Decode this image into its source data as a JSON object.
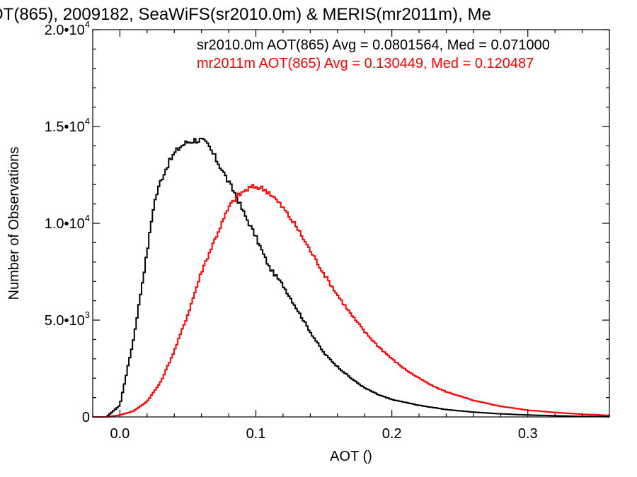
{
  "chart_data": {
    "type": "histogram",
    "title": "OT(865), 2009182, SeaWiFS(sr2010.0m) & MERIS(mr2011m), Me",
    "xlabel": "AOT ()",
    "ylabel": "Number of Observations",
    "xlim": [
      -0.02,
      0.36
    ],
    "ylim": [
      0,
      20000
    ],
    "x_ticks": [
      {
        "value": 0.0,
        "label": "0.0"
      },
      {
        "value": 0.1,
        "label": "0.1"
      },
      {
        "value": 0.2,
        "label": "0.2"
      },
      {
        "value": 0.3,
        "label": "0.3"
      }
    ],
    "y_ticks": [
      {
        "value": 0,
        "mantissa": "0",
        "exp": ""
      },
      {
        "value": 5000,
        "mantissa": "5.0•10",
        "exp": "3"
      },
      {
        "value": 10000,
        "mantissa": "1.0•10",
        "exp": "4"
      },
      {
        "value": 15000,
        "mantissa": "1.5•10",
        "exp": "4"
      },
      {
        "value": 20000,
        "mantissa": "2.0•10",
        "exp": "4"
      }
    ],
    "grid": false,
    "legend": [
      {
        "text": "sr2010.0m AOT(865) Avg = 0.0801564, Med = 0.071000",
        "color": "#000000"
      },
      {
        "text": "mr2011m AOT(865) Avg = 0.130449, Med = 0.120487",
        "color": "#ff0000"
      }
    ],
    "series": [
      {
        "color": "#000000",
        "x": [
          -0.01,
          0.0,
          0.01,
          0.02,
          0.025,
          0.03,
          0.035,
          0.04,
          0.045,
          0.05,
          0.055,
          0.06,
          0.065,
          0.07,
          0.075,
          0.08,
          0.085,
          0.09,
          0.095,
          0.1,
          0.105,
          0.11,
          0.12,
          0.13,
          0.14,
          0.15,
          0.16,
          0.17,
          0.18,
          0.19,
          0.2,
          0.22,
          0.24,
          0.26,
          0.28,
          0.3,
          0.32,
          0.34,
          0.36
        ],
        "values": [
          0,
          600,
          4000,
          8500,
          11000,
          12200,
          13000,
          13600,
          14000,
          14200,
          14300,
          14300,
          14000,
          13400,
          12800,
          12100,
          11500,
          10700,
          10000,
          9300,
          8500,
          7700,
          6800,
          5600,
          4400,
          3300,
          2600,
          2000,
          1500,
          1150,
          900,
          600,
          380,
          250,
          160,
          100,
          60,
          30,
          15
        ]
      },
      {
        "color": "#ff0000",
        "x": [
          -0.01,
          0.0,
          0.01,
          0.02,
          0.03,
          0.04,
          0.05,
          0.06,
          0.07,
          0.075,
          0.08,
          0.085,
          0.09,
          0.095,
          0.1,
          0.105,
          0.11,
          0.115,
          0.12,
          0.125,
          0.13,
          0.135,
          0.14,
          0.145,
          0.15,
          0.16,
          0.17,
          0.18,
          0.19,
          0.2,
          0.21,
          0.22,
          0.23,
          0.24,
          0.26,
          0.28,
          0.3,
          0.32,
          0.34,
          0.36
        ],
        "values": [
          0,
          100,
          300,
          800,
          1800,
          3400,
          5300,
          7500,
          9200,
          10000,
          10800,
          11300,
          11600,
          11800,
          11900,
          11800,
          11600,
          11200,
          10800,
          10300,
          9800,
          9200,
          8600,
          8000,
          7400,
          6300,
          5300,
          4400,
          3650,
          3000,
          2450,
          2000,
          1600,
          1300,
          850,
          550,
          350,
          230,
          140,
          80
        ]
      }
    ]
  }
}
